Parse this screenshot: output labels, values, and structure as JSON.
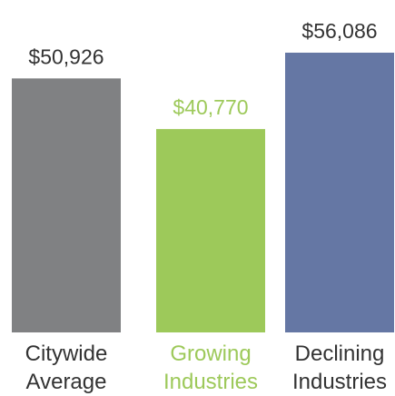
{
  "chart_data": {
    "type": "bar",
    "categories": [
      "Citywide Average",
      "Growing Industries",
      "Declining Industries"
    ],
    "values": [
      50926,
      40770,
      56086
    ],
    "value_labels": [
      "$50,926",
      "$40,770",
      "$56,086"
    ],
    "colors": [
      "#808183",
      "#9dc95a",
      "#6577a4"
    ],
    "label_colors": [
      "#333333",
      "#9dc95a",
      "#333333"
    ]
  }
}
